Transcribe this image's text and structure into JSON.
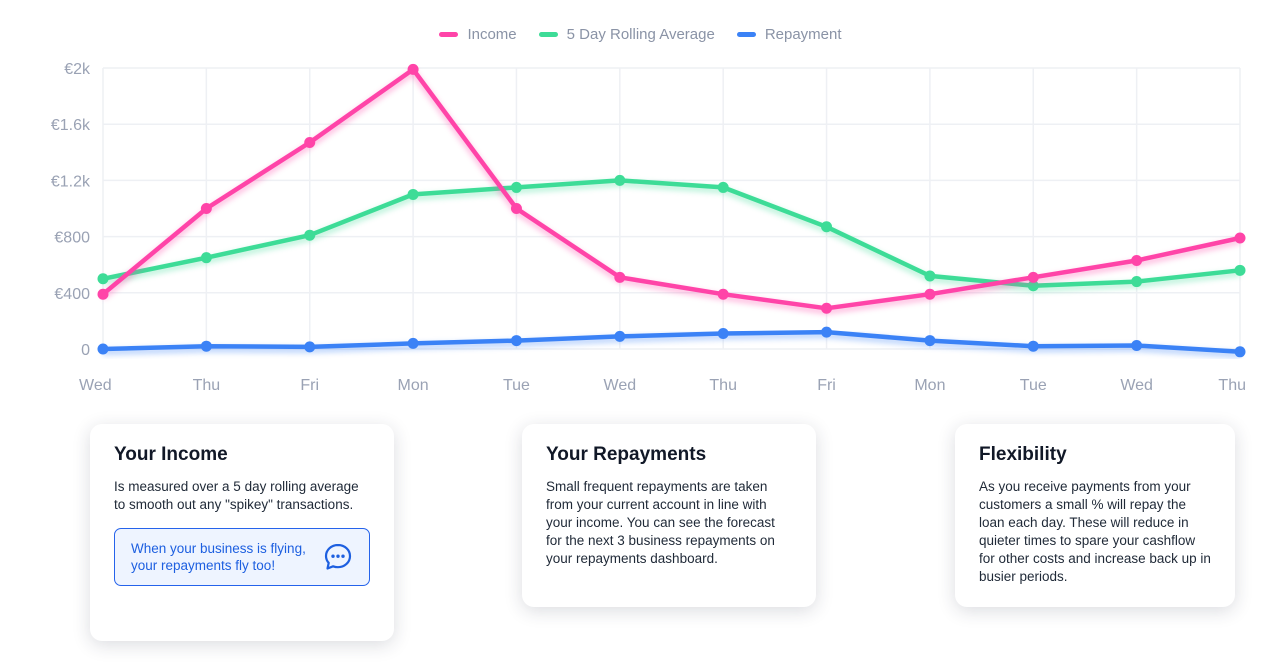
{
  "legend": [
    {
      "label": "Income",
      "color": "#ff44a8"
    },
    {
      "label": "5 Day Rolling Average",
      "color": "#3ddc97"
    },
    {
      "label": "Repayment",
      "color": "#3b82f6"
    }
  ],
  "chart_data": {
    "type": "line",
    "x": [
      "Wed",
      "Thu",
      "Fri",
      "Mon",
      "Tue",
      "Wed",
      "Thu",
      "Fri",
      "Mon",
      "Tue",
      "Wed",
      "Thu"
    ],
    "y_ticks": [
      "€2k",
      "€1.6k",
      "€1.2k",
      "€800",
      "€400",
      "0"
    ],
    "ylim": [
      0,
      2000
    ],
    "grid": true,
    "legend_position": "top-center",
    "series": [
      {
        "name": "Income",
        "color": "#ff44a8",
        "values": [
          390,
          1000,
          1470,
          1990,
          1000,
          510,
          390,
          290,
          390,
          510,
          630,
          790
        ]
      },
      {
        "name": "5 Day Rolling Average",
        "color": "#3ddc97",
        "values": [
          500,
          650,
          810,
          1100,
          1150,
          1200,
          1150,
          870,
          520,
          450,
          480,
          560
        ]
      },
      {
        "name": "Repayment",
        "color": "#3b82f6",
        "values": [
          0,
          20,
          15,
          40,
          60,
          90,
          110,
          120,
          60,
          20,
          25,
          -20
        ]
      }
    ]
  },
  "cards": [
    {
      "title": "Your Income",
      "body": "Is measured over a 5 day rolling average to smooth out any \"spikey\" transactions.",
      "callout": "When your business is flying, your repayments fly too!"
    },
    {
      "title": "Your Repayments",
      "body": "Small frequent repayments are taken from your current account in line with your income. You can see the forecast for the next 3 business repayments on your repayments dashboard."
    },
    {
      "title": "Flexibility",
      "body": "As you receive payments from your customers a small % will repay the loan each day. These will reduce in quieter times to spare your cashflow for other costs and increase back up in busier periods."
    }
  ]
}
